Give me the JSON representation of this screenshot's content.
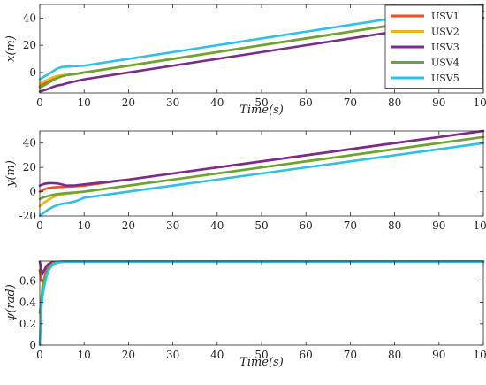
{
  "chart_data": [
    {
      "type": "line",
      "xlabel": "Time(s)",
      "ylabel": "x(m)",
      "xlim": [
        0,
        100
      ],
      "ylim": [
        -15,
        50
      ],
      "xticks": [
        0,
        10,
        20,
        30,
        40,
        50,
        60,
        70,
        80,
        90,
        100
      ],
      "yticks": [
        0,
        20,
        40
      ],
      "grid": false,
      "legend": "top-right",
      "series": [
        {
          "name": "USV1",
          "color": "#e8502a",
          "x": [
            0,
            1,
            2,
            3,
            4,
            5,
            6,
            8,
            10,
            20,
            30,
            40,
            50,
            60,
            70,
            80,
            90,
            100
          ],
          "y": [
            -10,
            -8.3,
            -6.6,
            -4.9,
            -3.2,
            -2.5,
            -1.8,
            -1.2,
            0,
            5,
            10,
            15,
            20,
            25,
            30,
            35,
            40,
            45
          ]
        },
        {
          "name": "USV2",
          "color": "#f2b21a",
          "x": [
            0,
            1,
            2,
            3,
            4,
            5,
            6,
            8,
            10,
            20,
            30,
            40,
            50,
            60,
            70,
            80,
            90,
            100
          ],
          "y": [
            -8,
            -6.5,
            -5,
            -3.5,
            -2.5,
            -2,
            -1.8,
            -1.2,
            0,
            5,
            10,
            15,
            20,
            25,
            30,
            35,
            40,
            45
          ]
        },
        {
          "name": "USV3",
          "color": "#7b2a8e",
          "x": [
            0,
            1,
            2,
            3,
            4,
            5,
            6,
            8,
            10,
            20,
            30,
            40,
            50,
            60,
            70,
            80,
            90,
            100
          ],
          "y": [
            -14,
            -13,
            -12,
            -10.5,
            -9.5,
            -9,
            -8,
            -6.5,
            -5,
            0,
            5,
            10,
            15,
            20,
            25,
            30,
            35,
            40
          ]
        },
        {
          "name": "USV4",
          "color": "#6aa531",
          "x": [
            0,
            1,
            2,
            3,
            4,
            5,
            6,
            8,
            10,
            20,
            30,
            40,
            50,
            60,
            70,
            80,
            90,
            100
          ],
          "y": [
            -11,
            -9.5,
            -7.5,
            -5.5,
            -4,
            -2.8,
            -2,
            -1,
            0,
            5,
            10,
            15,
            20,
            25,
            30,
            35,
            40,
            45
          ]
        },
        {
          "name": "USV5",
          "color": "#2fbfe8",
          "x": [
            0,
            1,
            2,
            3,
            4,
            5,
            6,
            8,
            10,
            20,
            30,
            40,
            50,
            60,
            70,
            80,
            90,
            100
          ],
          "y": [
            -5,
            -3,
            -1,
            1,
            3,
            4,
            4.3,
            4.6,
            5,
            10,
            15,
            20,
            25,
            30,
            35,
            40,
            45,
            50
          ]
        }
      ]
    },
    {
      "type": "line",
      "xlabel": "",
      "ylabel": "y(m)",
      "xlim": [
        0,
        100
      ],
      "ylim": [
        -20,
        50
      ],
      "xticks": [
        0,
        10,
        20,
        30,
        40,
        50,
        60,
        70,
        80,
        90,
        100
      ],
      "yticks": [
        -20,
        0,
        20,
        40
      ],
      "grid": false,
      "legend": "none",
      "series": [
        {
          "name": "USV1",
          "color": "#e8502a",
          "x": [
            0,
            1,
            2,
            3,
            4,
            5,
            6,
            8,
            10,
            20,
            30,
            40,
            50,
            60,
            70,
            80,
            90,
            100
          ],
          "y": [
            0,
            2,
            3,
            3.5,
            3.8,
            3.9,
            4,
            4.5,
            5,
            10,
            15,
            20,
            25,
            30,
            35,
            40,
            45,
            50
          ]
        },
        {
          "name": "USV2",
          "color": "#f2b21a",
          "x": [
            0,
            1,
            2,
            3,
            4,
            5,
            6,
            8,
            10,
            20,
            30,
            40,
            50,
            60,
            70,
            80,
            90,
            100
          ],
          "y": [
            -12,
            -9,
            -6.5,
            -4.5,
            -3,
            -2.2,
            -1.8,
            -1,
            0,
            5,
            10,
            15,
            20,
            25,
            30,
            35,
            40,
            45
          ]
        },
        {
          "name": "USV3",
          "color": "#7b2a8e",
          "x": [
            0,
            1,
            2,
            3,
            4,
            5,
            6,
            8,
            10,
            20,
            30,
            40,
            50,
            60,
            70,
            80,
            90,
            100
          ],
          "y": [
            5,
            6.5,
            7,
            7,
            6.8,
            6,
            5,
            5.2,
            6,
            10,
            15,
            20,
            25,
            30,
            35,
            40,
            45,
            50
          ]
        },
        {
          "name": "USV4",
          "color": "#6aa531",
          "x": [
            0,
            1,
            2,
            3,
            4,
            5,
            6,
            8,
            10,
            20,
            30,
            40,
            50,
            60,
            70,
            80,
            90,
            100
          ],
          "y": [
            -6,
            -4.5,
            -3.5,
            -2.5,
            -2,
            -1.5,
            -1.2,
            -0.6,
            0,
            5,
            10,
            15,
            20,
            25,
            30,
            35,
            40,
            45
          ]
        },
        {
          "name": "USV5",
          "color": "#2fbfe8",
          "x": [
            0,
            1,
            2,
            3,
            4,
            5,
            6,
            8,
            10,
            20,
            30,
            40,
            50,
            60,
            70,
            80,
            90,
            100
          ],
          "y": [
            -20,
            -17,
            -14.5,
            -12.5,
            -11,
            -10,
            -9.5,
            -8,
            -5,
            0,
            5,
            10,
            15,
            20,
            25,
            30,
            35,
            40
          ]
        }
      ]
    },
    {
      "type": "line",
      "xlabel": "Time(s)",
      "ylabel": "ψ(rad)",
      "xlim": [
        0,
        100
      ],
      "ylim": [
        0,
        0.785
      ],
      "xticks": [
        0,
        10,
        20,
        30,
        40,
        50,
        60,
        70,
        80,
        90,
        100
      ],
      "yticks": [
        0,
        0.2,
        0.4,
        0.6
      ],
      "grid": false,
      "legend": "none",
      "series": [
        {
          "name": "USV1",
          "color": "#e8502a",
          "x": [
            0,
            0.3,
            0.6,
            1,
            1.5,
            2,
            2.5,
            3,
            4,
            5,
            6,
            8,
            10,
            20,
            30,
            40,
            50,
            60,
            70,
            80,
            90,
            100
          ],
          "y": [
            0.7,
            0.6,
            0.6,
            0.62,
            0.7,
            0.74,
            0.76,
            0.77,
            0.775,
            0.778,
            0.78,
            0.78,
            0.78,
            0.78,
            0.78,
            0.78,
            0.78,
            0.78,
            0.78,
            0.78,
            0.78,
            0.78
          ]
        },
        {
          "name": "USV2",
          "color": "#f2b21a",
          "x": [
            0,
            0.3,
            0.6,
            1,
            1.5,
            2,
            2.5,
            3,
            4,
            5,
            6,
            8,
            10,
            20,
            30,
            40,
            50,
            60,
            70,
            80,
            90,
            100
          ],
          "y": [
            0.0,
            0.3,
            0.5,
            0.6,
            0.67,
            0.72,
            0.75,
            0.765,
            0.775,
            0.778,
            0.78,
            0.78,
            0.78,
            0.78,
            0.78,
            0.78,
            0.78,
            0.78,
            0.78,
            0.78,
            0.78,
            0.78
          ]
        },
        {
          "name": "USV3",
          "color": "#7b2a8e",
          "x": [
            0,
            0.3,
            0.6,
            1,
            1.5,
            2,
            2.5,
            3,
            4,
            5,
            6,
            8,
            10,
            20,
            30,
            40,
            50,
            60,
            70,
            80,
            90,
            100
          ],
          "y": [
            0.78,
            0.72,
            0.66,
            0.7,
            0.74,
            0.76,
            0.77,
            0.775,
            0.778,
            0.78,
            0.78,
            0.78,
            0.78,
            0.78,
            0.78,
            0.78,
            0.78,
            0.78,
            0.78,
            0.78,
            0.78,
            0.78
          ]
        },
        {
          "name": "USV4",
          "color": "#6aa531",
          "x": [
            0,
            0.3,
            0.6,
            1,
            1.5,
            2,
            2.5,
            3,
            4,
            5,
            6,
            8,
            10,
            20,
            30,
            40,
            50,
            60,
            70,
            80,
            90,
            100
          ],
          "y": [
            0.3,
            0.4,
            0.55,
            0.62,
            0.68,
            0.72,
            0.75,
            0.765,
            0.775,
            0.778,
            0.78,
            0.78,
            0.78,
            0.78,
            0.78,
            0.78,
            0.78,
            0.78,
            0.78,
            0.78,
            0.78,
            0.78
          ]
        },
        {
          "name": "USV5",
          "color": "#2fbfe8",
          "x": [
            0,
            0.3,
            0.6,
            1,
            1.5,
            2,
            2.5,
            3,
            4,
            5,
            6,
            8,
            10,
            20,
            30,
            40,
            50,
            60,
            70,
            80,
            90,
            100
          ],
          "y": [
            0.0,
            0.33,
            0.45,
            0.55,
            0.64,
            0.7,
            0.73,
            0.755,
            0.77,
            0.777,
            0.78,
            0.78,
            0.78,
            0.78,
            0.78,
            0.78,
            0.78,
            0.78,
            0.78,
            0.78,
            0.78,
            0.78
          ]
        }
      ]
    }
  ]
}
